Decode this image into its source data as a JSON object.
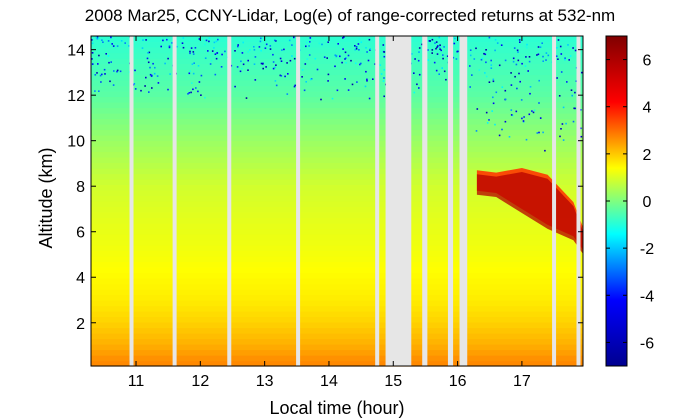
{
  "chart_data": {
    "type": "heatmap",
    "title": "2008 Mar25, CCNY-Lidar, Log(e) of range-corrected returns at 532-nm",
    "xlabel": "Local time (hour)",
    "ylabel": "Altitude (km)",
    "xlim": [
      10.3,
      17.95
    ],
    "ylim": [
      0.1,
      14.6
    ],
    "xticks": [
      "11",
      "12",
      "13",
      "14",
      "15",
      "16",
      "17"
    ],
    "yticks": [
      "2",
      "4",
      "6",
      "8",
      "10",
      "12",
      "14"
    ],
    "colorbar": {
      "range": [
        -7,
        7
      ],
      "ticks": [
        "6",
        "4",
        "2",
        "0",
        "-2",
        "-4",
        "-6"
      ]
    },
    "no_data_gaps_hours": [
      [
        14.88,
        15.28
      ],
      [
        15.45,
        15.53
      ],
      [
        15.85,
        15.93
      ],
      [
        16.03,
        16.15
      ]
    ],
    "thin_gaps_hours": [
      10.93,
      11.6,
      12.45,
      13.52,
      14.75,
      17.5,
      17.88
    ],
    "profile_layers": [
      {
        "altitude_km": 0.3,
        "log_return": 2.7
      },
      {
        "altitude_km": 1.0,
        "log_return": 2.3
      },
      {
        "altitude_km": 2.0,
        "log_return": 1.9
      },
      {
        "altitude_km": 3.0,
        "log_return": 1.6
      },
      {
        "altitude_km": 5.0,
        "log_return": 1.3
      },
      {
        "altitude_km": 8.0,
        "log_return": 0.9
      },
      {
        "altitude_km": 10.0,
        "log_return": 0.3
      },
      {
        "altitude_km": 12.0,
        "log_return": -0.4
      },
      {
        "altitude_km": 14.5,
        "log_return": -0.9
      }
    ],
    "cloud_layer": {
      "time_hours": [
        16.3,
        16.6,
        17.0,
        17.4,
        17.8,
        17.95
      ],
      "top_km": [
        8.7,
        8.6,
        8.8,
        8.5,
        7.3,
        6.2
      ],
      "base_km": [
        7.8,
        7.7,
        7.0,
        6.3,
        5.8,
        5.2
      ],
      "log_return": 5.8
    }
  },
  "colors": {
    "background": "#ffffff",
    "no_data": "#e6e6e6",
    "colormap": [
      "#00008f",
      "#0000ff",
      "#00ffff",
      "#ffff00",
      "#ff0000",
      "#800000"
    ]
  }
}
